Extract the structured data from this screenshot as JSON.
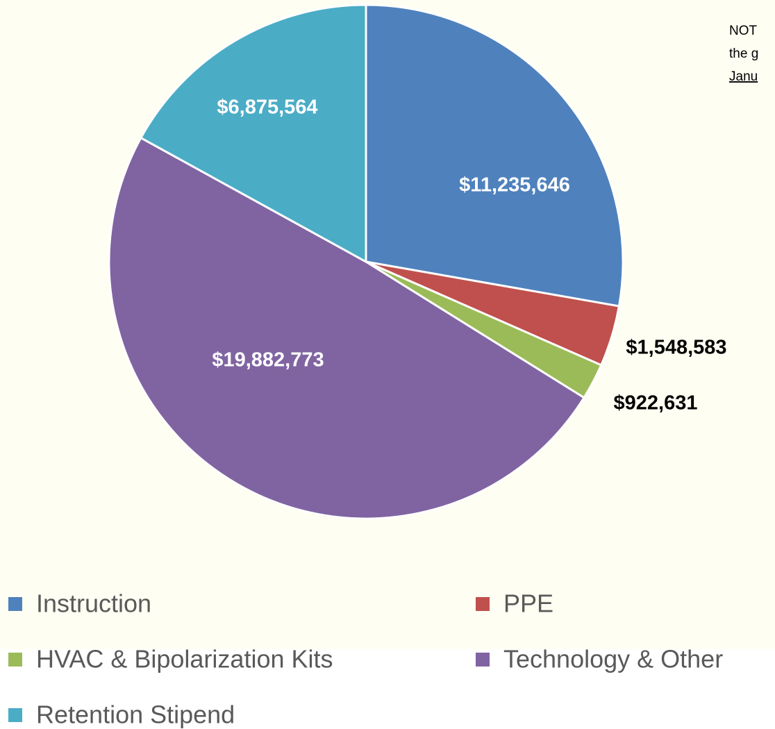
{
  "chart_data": {
    "type": "pie",
    "categories": [
      "Instruction",
      "PPE",
      "HVAC & Bipolarization Kits",
      "Technology & Other",
      "Retention Stipend"
    ],
    "values": [
      11235646,
      1548583,
      922631,
      19882773,
      6875564
    ],
    "value_labels": [
      "$11,235,646",
      "$1,548,583",
      "$922,631",
      "$19,882,773",
      "$6,875,564"
    ],
    "colors": [
      "#4f81bd",
      "#c0504d",
      "#9bbb59",
      "#8064a2",
      "#4bacc6"
    ],
    "annotations": [
      "NOT",
      "the g",
      "Janu"
    ],
    "legend": "bottom"
  }
}
